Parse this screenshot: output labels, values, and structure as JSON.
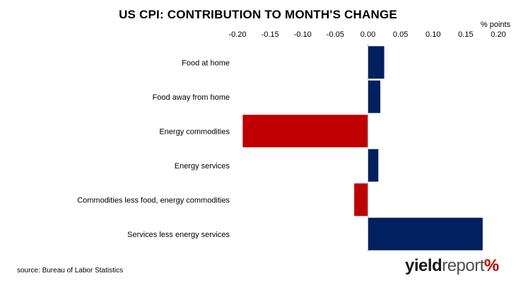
{
  "chart_data": {
    "type": "bar",
    "orientation": "horizontal",
    "title": "US CPI: CONTRIBUTION TO MONTH'S CHANGE",
    "unit_label": "% points",
    "xlim": [
      -0.2,
      0.2
    ],
    "ticks": [
      "-0.20",
      "-0.15",
      "-0.10",
      "-0.05",
      "0.00",
      "0.05",
      "0.10",
      "0.15",
      "0.20"
    ],
    "tick_values": [
      -0.2,
      -0.15,
      -0.1,
      -0.05,
      0.0,
      0.05,
      0.1,
      0.15,
      0.2
    ],
    "categories": [
      "Food at home",
      "Food away from home",
      "Energy commodities",
      "Energy services",
      "Commodities less food, energy commodities",
      "Services less energy services"
    ],
    "values": [
      0.025,
      0.019,
      -0.192,
      0.016,
      -0.021,
      0.176
    ],
    "colors": {
      "positive": "#002060",
      "negative": "#c00000"
    },
    "axis_position": "top",
    "grid": false
  },
  "source": "source: Bureau of Labor Statistics",
  "logo": {
    "part1": "yield",
    "part2": "report",
    "part3": "%"
  }
}
